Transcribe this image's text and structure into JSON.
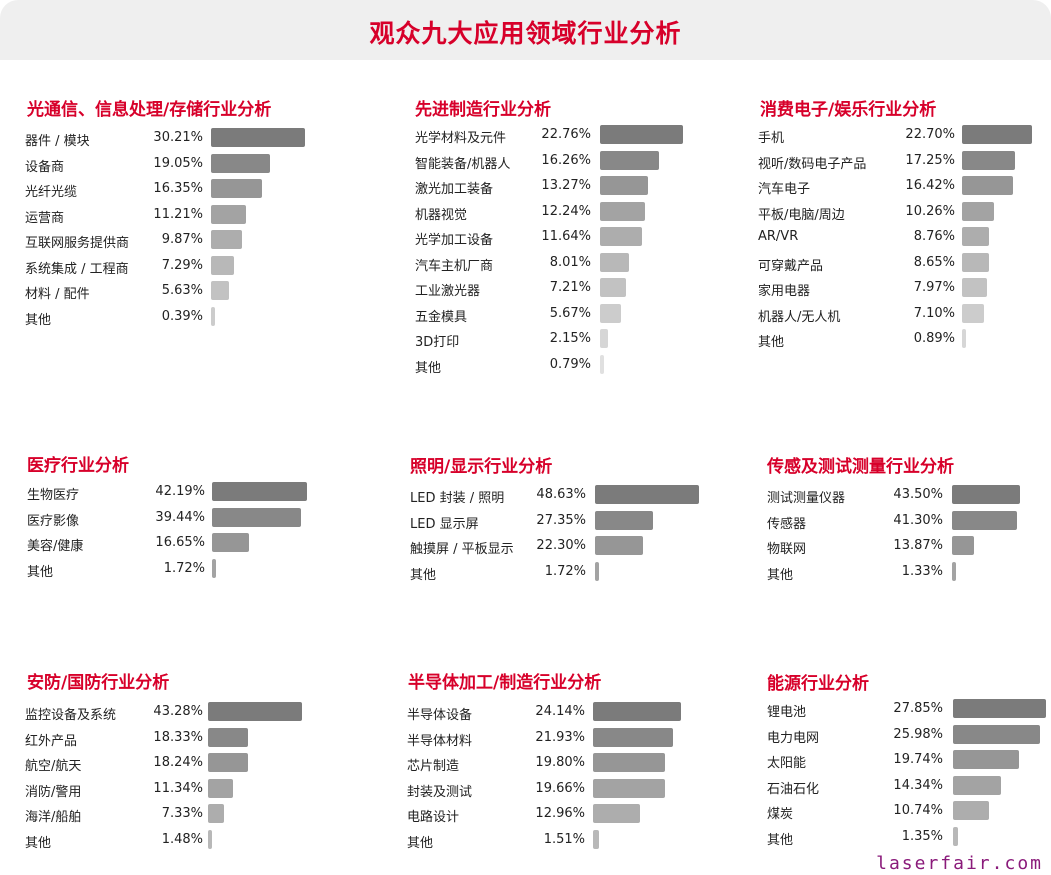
{
  "title": "观众九大应用领域行业分析",
  "watermark": "laserfair.com",
  "chart_data": [
    {
      "type": "bar",
      "title": "光通信、信息处理/存储行业分析",
      "categories": [
        "器件 / 模块",
        "设备商",
        "光纤光缆",
        "运营商",
        "互联网服务提供商",
        "系统集成 / 工程商",
        "材料 / 配件",
        "其他"
      ],
      "values": [
        30.21,
        19.05,
        16.35,
        11.21,
        9.87,
        7.29,
        5.63,
        0.39
      ]
    },
    {
      "type": "bar",
      "title": "先进制造行业分析",
      "categories": [
        "光学材料及元件",
        "智能装备/机器人",
        "激光加工装备",
        "机器视觉",
        "光学加工设备",
        "汽车主机厂商",
        "工业激光器",
        "五金模具",
        "3D打印",
        "其他"
      ],
      "values": [
        22.76,
        16.26,
        13.27,
        12.24,
        11.64,
        8.01,
        7.21,
        5.67,
        2.15,
        0.79
      ]
    },
    {
      "type": "bar",
      "title": "消费电子/娱乐行业分析",
      "categories": [
        "手机",
        "视听/数码电子产品",
        "汽车电子",
        "平板/电脑/周边",
        "AR/VR",
        "可穿戴产品",
        "家用电器",
        "机器人/无人机",
        "其他"
      ],
      "values": [
        22.7,
        17.25,
        16.42,
        10.26,
        8.76,
        8.65,
        7.97,
        7.1,
        0.89
      ]
    },
    {
      "type": "bar",
      "title": "医疗行业分析",
      "categories": [
        "生物医疗",
        "医疗影像",
        "美容/健康",
        "其他"
      ],
      "values": [
        42.19,
        39.44,
        16.65,
        1.72
      ]
    },
    {
      "type": "bar",
      "title": "照明/显示行业分析",
      "categories": [
        "LED 封装 / 照明",
        "LED 显示屏",
        "触摸屏 / 平板显示",
        "其他"
      ],
      "values": [
        48.63,
        27.35,
        22.3,
        1.72
      ]
    },
    {
      "type": "bar",
      "title": "传感及测试测量行业分析",
      "categories": [
        "测试测量仪器",
        "传感器",
        "物联网",
        "其他"
      ],
      "values": [
        43.5,
        41.3,
        13.87,
        1.33
      ]
    },
    {
      "type": "bar",
      "title": "安防/国防行业分析",
      "categories": [
        "监控设备及系统",
        "红外产品",
        "航空/航天",
        "消防/警用",
        "海洋/船舶",
        "其他"
      ],
      "values": [
        43.28,
        18.33,
        18.24,
        11.34,
        7.33,
        1.48
      ]
    },
    {
      "type": "bar",
      "title": "半导体加工/制造行业分析",
      "categories": [
        "半导体设备",
        "半导体材料",
        "芯片制造",
        "封装及测试",
        "电路设计",
        "其他"
      ],
      "values": [
        24.14,
        21.93,
        19.8,
        19.66,
        12.96,
        1.51
      ]
    },
    {
      "type": "bar",
      "title": "能源行业分析",
      "categories": [
        "锂电池",
        "电力电网",
        "太阳能",
        "石油石化",
        "煤炭",
        "其他"
      ],
      "values": [
        27.85,
        25.98,
        19.74,
        14.34,
        10.74,
        1.35
      ]
    }
  ]
}
